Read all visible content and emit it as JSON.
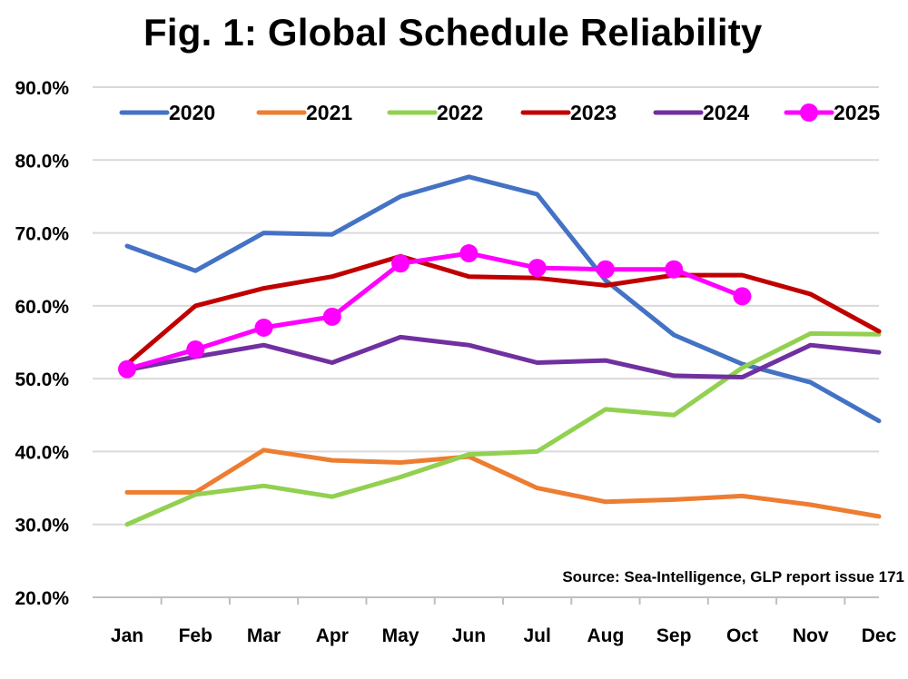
{
  "chart_data": {
    "type": "line",
    "title": "Fig. 1: Global Schedule Reliability",
    "categories": [
      "Jan",
      "Feb",
      "Mar",
      "Apr",
      "May",
      "Jun",
      "Jul",
      "Aug",
      "Sep",
      "Oct",
      "Nov",
      "Dec"
    ],
    "y_ticks": [
      "20.0%",
      "30.0%",
      "40.0%",
      "50.0%",
      "60.0%",
      "70.0%",
      "80.0%",
      "90.0%"
    ],
    "ylim": [
      20,
      90
    ],
    "grid": true,
    "legend_position": "top",
    "series": [
      {
        "name": "2020",
        "color": "#4472C4",
        "markers": false,
        "values": [
          68.2,
          64.8,
          70.0,
          69.8,
          75.0,
          77.7,
          75.3,
          63.5,
          56.0,
          52.0,
          49.5,
          44.2
        ]
      },
      {
        "name": "2021",
        "color": "#ED7D31",
        "markers": false,
        "values": [
          34.4,
          34.4,
          40.2,
          38.8,
          38.5,
          39.3,
          35.0,
          33.1,
          33.4,
          33.9,
          32.7,
          31.1
        ]
      },
      {
        "name": "2022",
        "color": "#92D050",
        "markers": false,
        "values": [
          30.0,
          34.1,
          35.3,
          33.8,
          36.5,
          39.6,
          40.0,
          45.8,
          45.0,
          51.5,
          56.2,
          56.1
        ]
      },
      {
        "name": "2023",
        "color": "#C00000",
        "markers": false,
        "values": [
          52.0,
          60.0,
          62.4,
          64.0,
          66.8,
          64.0,
          63.8,
          62.8,
          64.2,
          64.2,
          61.6,
          56.5
        ]
      },
      {
        "name": "2024",
        "color": "#7030A0",
        "markers": false,
        "values": [
          51.2,
          53.0,
          54.6,
          52.2,
          55.7,
          54.6,
          52.2,
          52.5,
          50.4,
          50.2,
          54.6,
          53.6
        ]
      },
      {
        "name": "2025",
        "color": "#FF00FF",
        "markers": true,
        "values": [
          51.3,
          54.0,
          57.0,
          58.5,
          65.8,
          67.2,
          65.2,
          65.0,
          65.0,
          61.3,
          null,
          null
        ]
      }
    ],
    "source": "Source: Sea-Intelligence, GLP report issue 171"
  }
}
